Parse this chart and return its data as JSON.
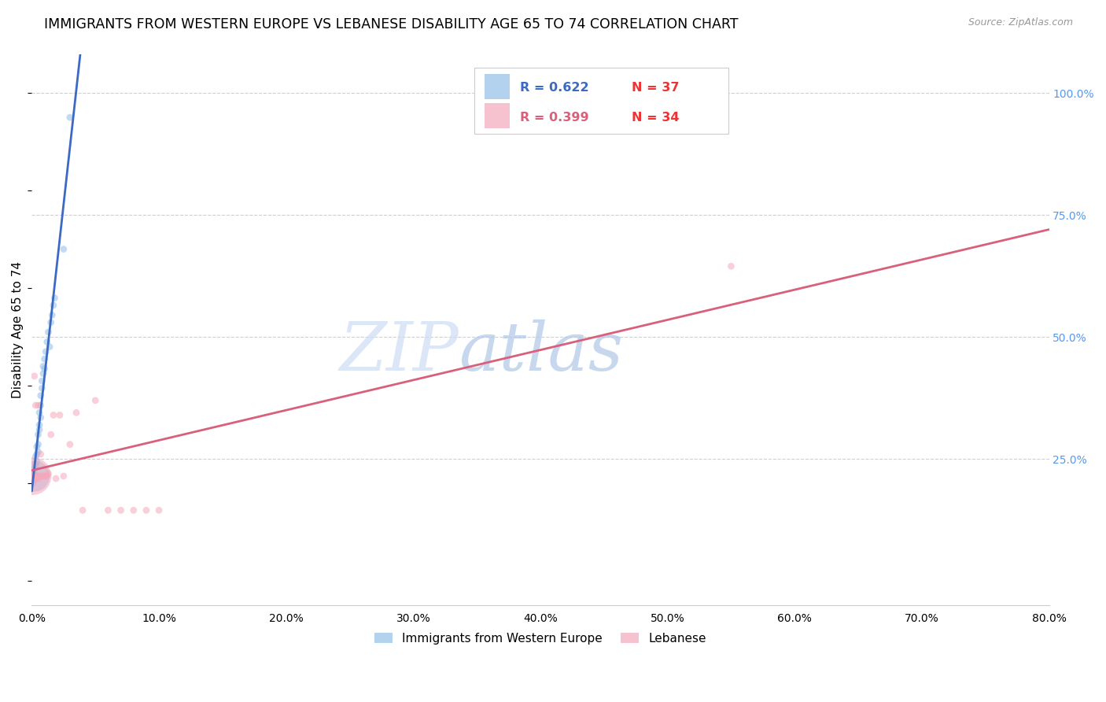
{
  "title": "IMMIGRANTS FROM WESTERN EUROPE VS LEBANESE DISABILITY AGE 65 TO 74 CORRELATION CHART",
  "source": "Source: ZipAtlas.com",
  "ylabel": "Disability Age 65 to 74",
  "watermark_zip": "ZIP",
  "watermark_atlas": "atlas",
  "xlim": [
    0.0,
    0.8
  ],
  "ylim": [
    -0.05,
    1.08
  ],
  "xticks": [
    0.0,
    0.1,
    0.2,
    0.3,
    0.4,
    0.5,
    0.6,
    0.7,
    0.8
  ],
  "yticks_right": [
    0.25,
    0.5,
    0.75,
    1.0
  ],
  "ytick_gridlines": [
    0.25,
    0.5,
    0.75,
    1.0
  ],
  "blue_R": 0.622,
  "blue_N": 37,
  "pink_R": 0.399,
  "pink_N": 34,
  "blue_color": "#92bfe8",
  "pink_color": "#f5a8bb",
  "blue_line_color": "#3b6ac4",
  "pink_line_color": "#d9607a",
  "blue_x": [
    0.001,
    0.001,
    0.001,
    0.002,
    0.002,
    0.002,
    0.003,
    0.003,
    0.003,
    0.004,
    0.004,
    0.004,
    0.005,
    0.005,
    0.005,
    0.006,
    0.006,
    0.006,
    0.007,
    0.007,
    0.007,
    0.008,
    0.008,
    0.009,
    0.009,
    0.01,
    0.01,
    0.011,
    0.012,
    0.013,
    0.014,
    0.015,
    0.016,
    0.017,
    0.018,
    0.025,
    0.03
  ],
  "blue_y": [
    0.215,
    0.225,
    0.205,
    0.22,
    0.23,
    0.215,
    0.24,
    0.255,
    0.235,
    0.26,
    0.275,
    0.245,
    0.28,
    0.3,
    0.265,
    0.32,
    0.345,
    0.31,
    0.36,
    0.38,
    0.335,
    0.395,
    0.41,
    0.425,
    0.44,
    0.455,
    0.435,
    0.47,
    0.49,
    0.51,
    0.48,
    0.53,
    0.545,
    0.565,
    0.58,
    0.68,
    0.95
  ],
  "blue_size": [
    60,
    40,
    40,
    45,
    40,
    800,
    40,
    40,
    40,
    40,
    40,
    40,
    40,
    40,
    40,
    40,
    40,
    40,
    40,
    40,
    40,
    40,
    40,
    40,
    40,
    40,
    40,
    40,
    40,
    40,
    40,
    40,
    40,
    40,
    40,
    40,
    40
  ],
  "pink_x": [
    0.0005,
    0.001,
    0.001,
    0.002,
    0.002,
    0.003,
    0.003,
    0.004,
    0.004,
    0.005,
    0.005,
    0.006,
    0.007,
    0.008,
    0.009,
    0.01,
    0.011,
    0.012,
    0.013,
    0.015,
    0.017,
    0.019,
    0.022,
    0.025,
    0.03,
    0.035,
    0.04,
    0.05,
    0.06,
    0.07,
    0.08,
    0.09,
    0.1,
    0.55
  ],
  "pink_y": [
    0.215,
    0.2,
    0.215,
    0.21,
    0.42,
    0.21,
    0.36,
    0.215,
    0.215,
    0.21,
    0.36,
    0.215,
    0.26,
    0.215,
    0.215,
    0.215,
    0.215,
    0.215,
    0.22,
    0.3,
    0.34,
    0.21,
    0.34,
    0.215,
    0.28,
    0.345,
    0.145,
    0.37,
    0.145,
    0.145,
    0.145,
    0.145,
    0.145,
    0.645
  ],
  "pink_size": [
    1200,
    40,
    40,
    40,
    40,
    40,
    40,
    40,
    40,
    40,
    40,
    40,
    40,
    40,
    40,
    40,
    40,
    40,
    40,
    40,
    40,
    40,
    40,
    40,
    40,
    40,
    40,
    40,
    40,
    40,
    40,
    40,
    40,
    40
  ],
  "background_color": "#ffffff",
  "grid_color": "#d0d0d0",
  "right_tick_color": "#5599ee",
  "title_fontsize": 12.5,
  "label_fontsize": 11,
  "tick_fontsize": 10,
  "legend_label_blue": "Immigrants from Western Europe",
  "legend_label_pink": "Lebanese"
}
